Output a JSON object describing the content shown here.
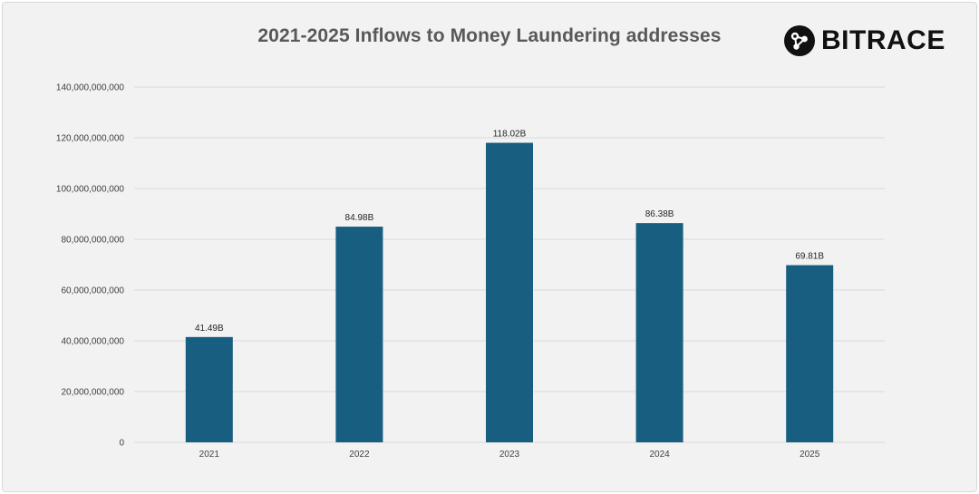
{
  "logo": {
    "brand": "BITRACE",
    "icon": "bitrace-logo-icon"
  },
  "colors": {
    "bar": "#175E80",
    "background": "#f2f2f2",
    "grid": "#d9d9d9",
    "title": "#595959"
  },
  "chart_data": {
    "type": "bar",
    "title": "2021-2025 Inflows to Money Laundering addresses",
    "xlabel": "",
    "ylabel": "",
    "categories": [
      "2021",
      "2022",
      "2023",
      "2024",
      "2025"
    ],
    "values": [
      41490000000,
      84980000000,
      118020000000,
      86380000000,
      69810000000
    ],
    "data_labels": [
      "41.49B",
      "84.98B",
      "118.02B",
      "86.38B",
      "69.81B"
    ],
    "ylim": [
      0,
      140000000000
    ],
    "yticks": [
      0,
      20000000000,
      40000000000,
      60000000000,
      80000000000,
      100000000000,
      120000000000,
      140000000000
    ],
    "ytick_labels": [
      "0",
      "20,000,000,000",
      "40,000,000,000",
      "60,000,000,000",
      "80,000,000,000",
      "100,000,000,000",
      "120,000,000,000",
      "140,000,000,000"
    ],
    "grid": true,
    "legend": "none"
  }
}
